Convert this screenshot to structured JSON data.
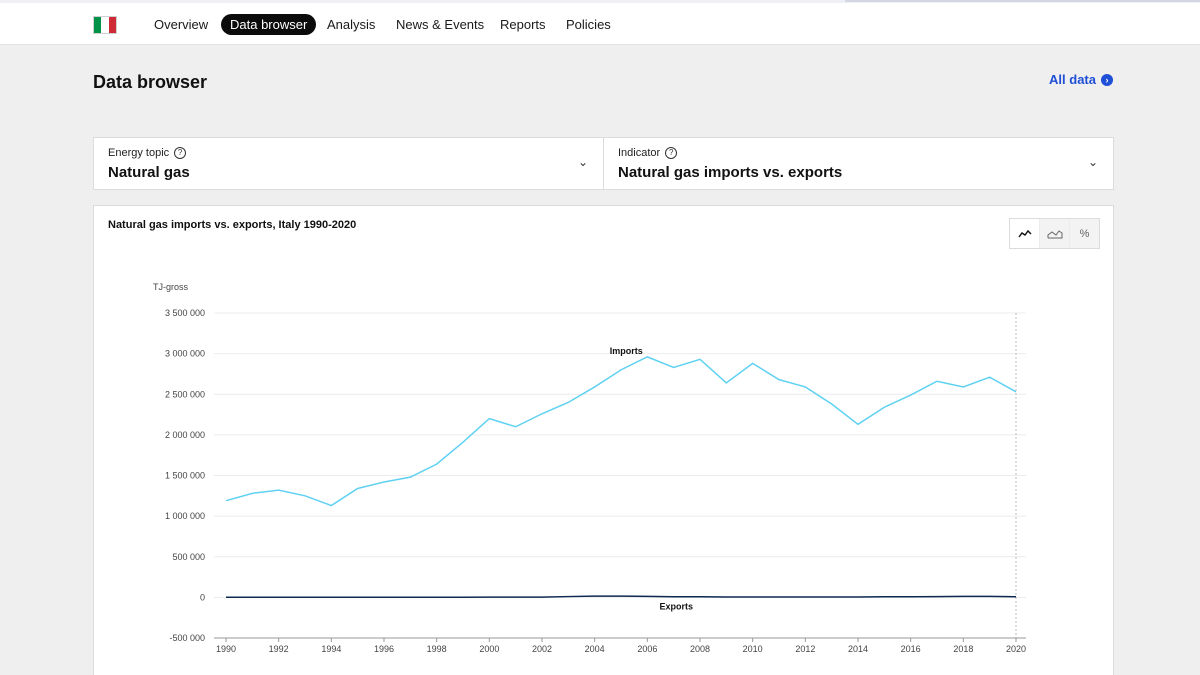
{
  "nav": {
    "flag_colors": [
      "#009246",
      "#ffffff",
      "#ce2b37"
    ],
    "items": [
      "Overview",
      "Data browser",
      "Analysis",
      "News & Events",
      "Reports",
      "Policies"
    ],
    "active": "Data browser"
  },
  "page": {
    "title": "Data browser",
    "all_data_label": "All data",
    "accent_color": "#1f4fd6"
  },
  "selectors": {
    "topic_label": "Energy topic",
    "topic_value": "Natural gas",
    "indicator_label": "Indicator",
    "indicator_value": "Natural gas imports vs. exports"
  },
  "chart_toggles": [
    {
      "icon": "line-chart-icon",
      "active": true
    },
    {
      "icon": "area-chart-icon",
      "active": false
    },
    {
      "icon": "percent-icon",
      "active": false
    }
  ],
  "chart_data": {
    "type": "line",
    "title": "Natural gas imports vs. exports, Italy 1990-2020",
    "ylabel": "TJ-gross",
    "xlabel": "",
    "ylim": [
      -500000,
      3500000
    ],
    "yticks": [
      -500000,
      0,
      500000,
      1000000,
      1500000,
      2000000,
      2500000,
      3000000,
      3500000
    ],
    "ytick_labels": [
      "-500 000",
      "0",
      "500 000",
      "1 000 000",
      "1 500 000",
      "2 000 000",
      "2 500 000",
      "3 000 000",
      "3 500 000"
    ],
    "xticks": [
      1990,
      1992,
      1994,
      1996,
      1998,
      2000,
      2002,
      2004,
      2006,
      2008,
      2010,
      2012,
      2014,
      2016,
      2018,
      2020
    ],
    "x": [
      1990,
      1991,
      1992,
      1993,
      1994,
      1995,
      1996,
      1997,
      1998,
      1999,
      2000,
      2001,
      2002,
      2003,
      2004,
      2005,
      2006,
      2007,
      2008,
      2009,
      2010,
      2011,
      2012,
      2013,
      2014,
      2015,
      2016,
      2017,
      2018,
      2019,
      2020
    ],
    "series": [
      {
        "name": "Imports",
        "color": "#5fd1f2",
        "values": [
          1190000,
          1280000,
          1320000,
          1250000,
          1130000,
          1340000,
          1420000,
          1480000,
          1640000,
          1910000,
          2200000,
          2100000,
          2260000,
          2400000,
          2590000,
          2800000,
          2960000,
          2830000,
          2930000,
          2640000,
          2880000,
          2680000,
          2590000,
          2380000,
          2130000,
          2340000,
          2490000,
          2660000,
          2590000,
          2710000,
          2530000
        ]
      },
      {
        "name": "Exports",
        "color": "#0e2a52",
        "values": [
          2000,
          2000,
          2000,
          2000,
          2000,
          2000,
          2000,
          2000,
          2000,
          2000,
          3000,
          3000,
          3000,
          10000,
          15000,
          15000,
          12000,
          8000,
          8000,
          5000,
          5000,
          5000,
          5000,
          5000,
          5000,
          8000,
          8000,
          10000,
          12000,
          12000,
          8000
        ]
      }
    ],
    "grid": true
  }
}
